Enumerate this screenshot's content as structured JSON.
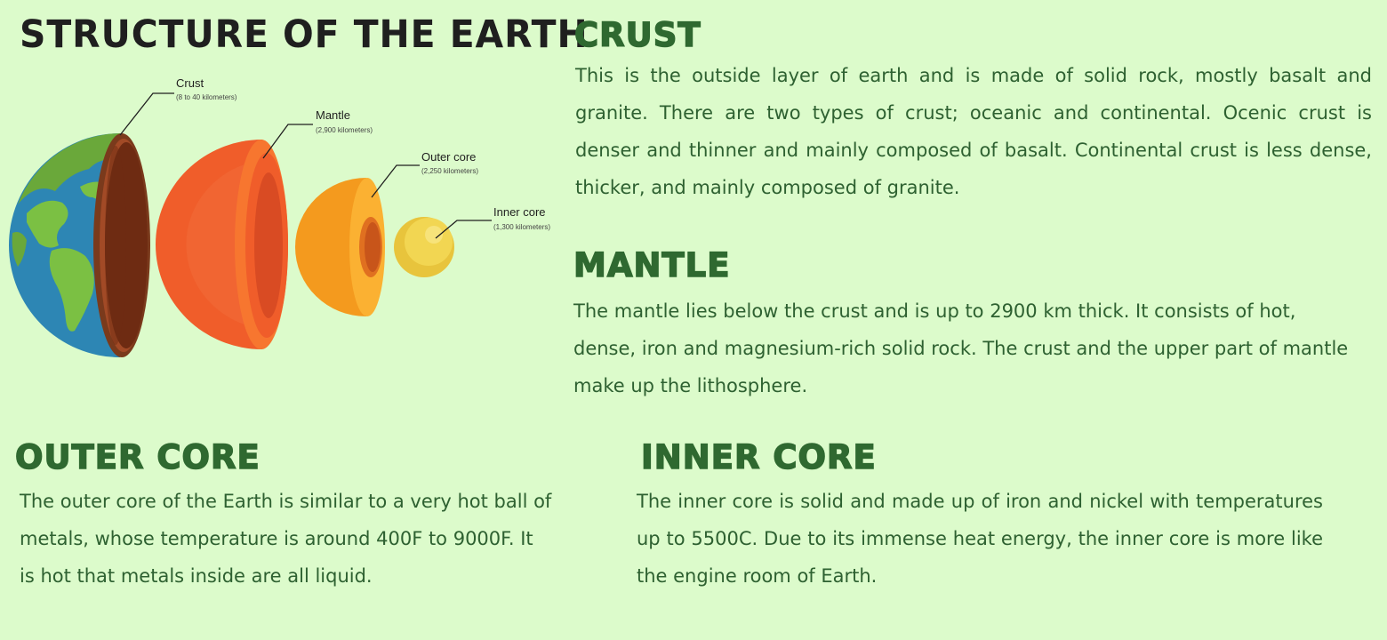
{
  "title": "STRUCTURE OF THE EARTH",
  "diagram": {
    "labels": {
      "crust": {
        "name": "Crust",
        "thickness": "(8 to 40 kilometers)"
      },
      "mantle": {
        "name": "Mantle",
        "thickness": "(2,900 kilometers)"
      },
      "outer_core": {
        "name": "Outer core",
        "thickness": "(2,250 kilometers)"
      },
      "inner_core": {
        "name": "Inner core",
        "thickness": "(1,300 kilometers)"
      }
    },
    "colors": {
      "background": "#dcfbcb",
      "ocean": "#2d86b4",
      "land": "#7bc043",
      "crust": "#8a3b1f",
      "mantle": "#f05d2a",
      "outer_core": "#f49a1e",
      "inner_core": "#f0d24a",
      "heading": "#2f6930",
      "text": "#2e6131"
    }
  },
  "sections": {
    "crust": {
      "heading": "CRUST",
      "text": "This is the outside layer of earth and is made of solid rock, mostly basalt and granite. There are two types of crust; oceanic and continental. Ocenic crust is denser and thinner and mainly composed of basalt. Continental crust is less dense, thicker, and mainly composed of granite."
    },
    "mantle": {
      "heading": "MANTLE",
      "text": "The mantle lies below the crust and is up to 2900 km thick. It consists of hot, dense, iron and magnesium-rich solid rock. The crust and the upper part of mantle make up the lithosphere."
    },
    "outer_core": {
      "heading": "OUTER CORE",
      "text": "The outer core of the Earth is similar to a very hot ball of metals, whose temperature is around 400F to 9000F. It is hot that metals inside are all liquid."
    },
    "inner_core": {
      "heading": "INNER CORE",
      "text": "The inner core is solid and made up of iron and nickel with temperatures up to 5500C. Due to its immense heat energy, the inner core is more like the engine room of Earth."
    }
  }
}
